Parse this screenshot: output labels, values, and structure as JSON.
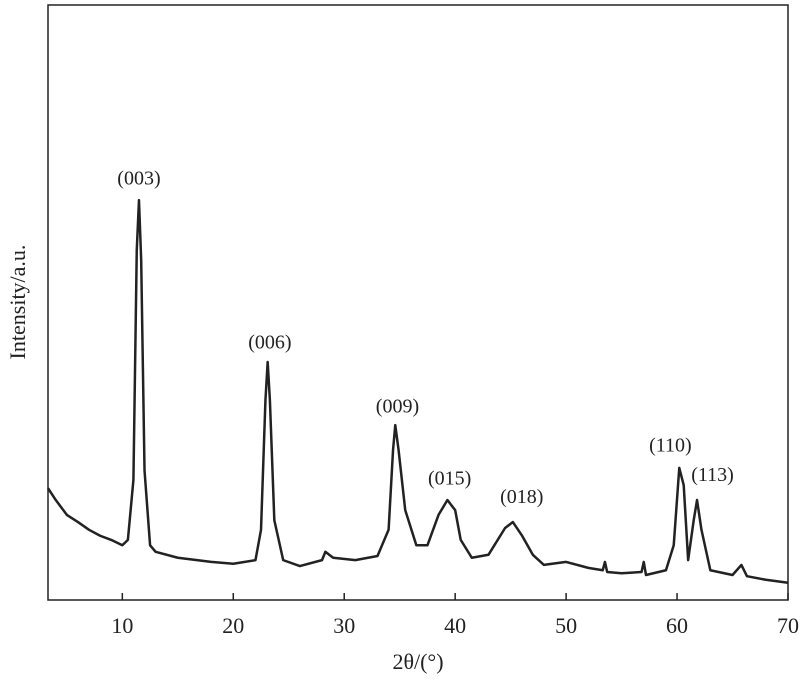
{
  "chart_data": {
    "type": "line",
    "x_label": "2θ/(°)",
    "y_label": "Intensity/a.u.",
    "xlim": [
      3.3,
      70
    ],
    "xticks": [
      10,
      20,
      30,
      40,
      50,
      60,
      70
    ],
    "ylim": [
      0,
      100
    ],
    "series": [
      {
        "color": "#222222",
        "x": [
          3.3,
          4,
          5,
          6,
          7,
          8,
          9,
          10,
          10.5,
          11,
          11.3,
          11.5,
          11.7,
          12,
          12.5,
          13,
          15,
          18,
          20,
          22,
          22.5,
          22.9,
          23.1,
          23.3,
          23.7,
          24.5,
          26,
          28,
          28.3,
          29,
          31,
          33,
          34,
          34.4,
          34.6,
          34.9,
          35.5,
          36.5,
          37.5,
          38.5,
          39.3,
          40,
          40.5,
          41.5,
          43,
          44.5,
          45.2,
          46,
          47,
          48,
          50,
          52,
          53.3,
          53.5,
          53.7,
          55,
          56.8,
          57,
          57.2,
          59,
          59.7,
          60.2,
          60.6,
          61,
          61.5,
          61.8,
          62.2,
          63,
          65,
          65.8,
          66.3,
          68,
          70
        ],
        "values": [
          18.8,
          16.8,
          14.3,
          13.1,
          11.8,
          10.8,
          10.1,
          9.2,
          10.1,
          20.2,
          58.8,
          67.2,
          57.1,
          21.8,
          9.2,
          8.1,
          7.1,
          6.4,
          6.1,
          6.7,
          11.8,
          33.6,
          40.0,
          33.6,
          13.4,
          6.7,
          5.7,
          6.7,
          8.1,
          7.1,
          6.7,
          7.4,
          11.8,
          25.2,
          29.4,
          25.2,
          15.1,
          9.2,
          9.2,
          14.3,
          16.8,
          15.1,
          10.1,
          7.1,
          7.6,
          12.1,
          13.1,
          10.9,
          7.6,
          5.9,
          6.4,
          5.4,
          5.0,
          6.4,
          4.7,
          4.5,
          4.7,
          6.4,
          4.2,
          5.0,
          9.2,
          22.2,
          19.3,
          6.7,
          13.4,
          16.8,
          11.8,
          5.0,
          4.2,
          5.9,
          4.0,
          3.4,
          2.9
        ]
      }
    ],
    "annotations": [
      {
        "text": "(003)",
        "x": 11.5,
        "y": 70.6
      },
      {
        "text": "(006)",
        "x": 23.3,
        "y": 43.0
      },
      {
        "text": "(009)",
        "x": 34.8,
        "y": 32.3
      },
      {
        "text": "(015)",
        "x": 39.5,
        "y": 20.2
      },
      {
        "text": "(018)",
        "x": 46,
        "y": 17.1
      },
      {
        "text": "(110)",
        "x": 59.4,
        "y": 25.7
      },
      {
        "text": "(113)",
        "x": 63.2,
        "y": 20.8
      }
    ]
  }
}
